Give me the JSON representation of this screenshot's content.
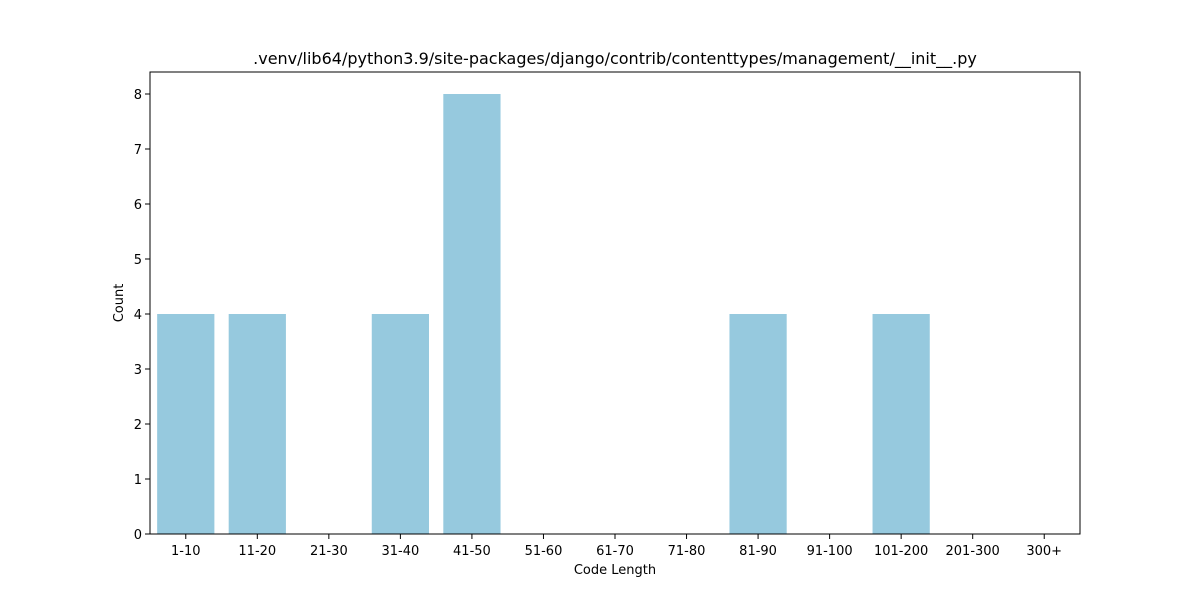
{
  "chart_data": {
    "type": "bar",
    "title": ".venv/lib64/python3.9/site-packages/django/contrib/contenttypes/management/__init__.py",
    "xlabel": "Code Length",
    "ylabel": "Count",
    "categories": [
      "1-10",
      "11-20",
      "21-30",
      "31-40",
      "41-50",
      "51-60",
      "61-70",
      "71-80",
      "81-90",
      "91-100",
      "101-200",
      "201-300",
      "300+"
    ],
    "values": [
      4,
      4,
      0,
      4,
      8,
      0,
      0,
      0,
      4,
      0,
      4,
      0,
      0
    ],
    "ylim": [
      0,
      8.4
    ],
    "yticks": [
      0,
      1,
      2,
      3,
      4,
      5,
      6,
      7,
      8
    ],
    "grid": false,
    "bar_color": "#96c9de"
  }
}
